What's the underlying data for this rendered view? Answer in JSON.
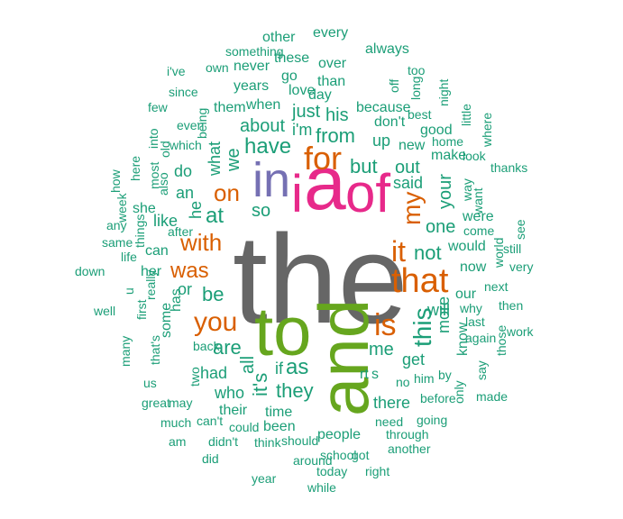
{
  "palette": {
    "teal": "#1b9e77",
    "orange": "#d95f02",
    "purple": "#7570b3",
    "pink": "#e7298a",
    "green": "#66a61e",
    "gray": "#666666"
  },
  "words": [
    {
      "t": "the",
      "c": "gray"
    },
    {
      "t": "to",
      "c": "green"
    },
    {
      "t": "and",
      "c": "green"
    },
    {
      "t": "a",
      "c": "pink"
    },
    {
      "t": "of",
      "c": "pink"
    },
    {
      "t": "i",
      "c": "pink"
    },
    {
      "t": "in",
      "c": "purple"
    },
    {
      "t": "that",
      "c": "orange"
    },
    {
      "t": "for",
      "c": "orange"
    },
    {
      "t": "is",
      "c": "orange"
    },
    {
      "t": "you",
      "c": "orange"
    },
    {
      "t": "it",
      "c": "orange"
    },
    {
      "t": "with",
      "c": "orange"
    },
    {
      "t": "was",
      "c": "orange"
    },
    {
      "t": "my",
      "c": "orange"
    },
    {
      "t": "on",
      "c": "orange"
    },
    {
      "t": "this",
      "c": "teal"
    },
    {
      "t": "have",
      "c": "teal"
    },
    {
      "t": "but",
      "c": "teal"
    },
    {
      "t": "be",
      "c": "teal"
    },
    {
      "t": "at",
      "c": "teal"
    },
    {
      "t": "are",
      "c": "teal"
    },
    {
      "t": "they",
      "c": "teal"
    },
    {
      "t": "me",
      "c": "teal"
    },
    {
      "t": "not",
      "c": "teal"
    },
    {
      "t": "from",
      "c": "teal"
    },
    {
      "t": "about",
      "c": "teal"
    },
    {
      "t": "just",
      "c": "teal"
    },
    {
      "t": "his",
      "c": "teal"
    },
    {
      "t": "as",
      "c": "teal"
    },
    {
      "t": "so",
      "c": "teal"
    },
    {
      "t": "one",
      "c": "teal"
    },
    {
      "t": "your",
      "c": "teal"
    },
    {
      "t": "out",
      "c": "teal"
    },
    {
      "t": "we",
      "c": "teal"
    },
    {
      "t": "like",
      "c": "teal"
    },
    {
      "t": "an",
      "c": "teal"
    },
    {
      "t": "he",
      "c": "teal"
    },
    {
      "t": "who",
      "c": "teal"
    },
    {
      "t": "if",
      "c": "teal"
    },
    {
      "t": "it's",
      "c": "teal"
    },
    {
      "t": "more",
      "c": "teal"
    },
    {
      "t": "will",
      "c": "teal"
    },
    {
      "t": "up",
      "c": "teal"
    },
    {
      "t": "said",
      "c": "teal"
    },
    {
      "t": "i'm",
      "c": "teal"
    },
    {
      "t": "there",
      "c": "teal"
    },
    {
      "t": "all",
      "c": "teal"
    },
    {
      "t": "had",
      "c": "teal"
    },
    {
      "t": "what",
      "c": "teal"
    },
    {
      "t": "do",
      "c": "teal"
    },
    {
      "t": "or",
      "c": "teal"
    },
    {
      "t": "get",
      "c": "teal"
    },
    {
      "t": "time",
      "c": "teal"
    },
    {
      "t": "their",
      "c": "teal"
    },
    {
      "t": "people",
      "c": "teal"
    },
    {
      "t": "been",
      "c": "teal"
    },
    {
      "t": "would",
      "c": "teal"
    },
    {
      "t": "now",
      "c": "teal"
    },
    {
      "t": "our",
      "c": "teal"
    },
    {
      "t": "can",
      "c": "teal"
    },
    {
      "t": "her",
      "c": "teal"
    },
    {
      "t": "has",
      "c": "teal"
    },
    {
      "t": "some",
      "c": "teal"
    },
    {
      "t": "when",
      "c": "teal"
    },
    {
      "t": "them",
      "c": "teal"
    },
    {
      "t": "than",
      "c": "teal"
    },
    {
      "t": "because",
      "c": "teal"
    },
    {
      "t": "don't",
      "c": "teal"
    },
    {
      "t": "new",
      "c": "teal"
    },
    {
      "t": "she",
      "c": "teal"
    },
    {
      "t": "know",
      "c": "teal"
    },
    {
      "t": "were",
      "c": "teal"
    },
    {
      "t": "good",
      "c": "teal"
    },
    {
      "t": "make",
      "c": "teal"
    },
    {
      "t": "day",
      "c": "teal"
    },
    {
      "t": "love",
      "c": "teal"
    },
    {
      "t": "go",
      "c": "teal"
    },
    {
      "t": "over",
      "c": "teal"
    },
    {
      "t": "these",
      "c": "teal"
    },
    {
      "t": "never",
      "c": "teal"
    },
    {
      "t": "years",
      "c": "teal"
    },
    {
      "t": "other",
      "c": "teal"
    },
    {
      "t": "every",
      "c": "teal"
    },
    {
      "t": "always",
      "c": "teal"
    },
    {
      "t": "something",
      "c": "teal"
    },
    {
      "t": "own",
      "c": "teal"
    },
    {
      "t": "i've",
      "c": "teal"
    },
    {
      "t": "since",
      "c": "teal"
    },
    {
      "t": "few",
      "c": "teal"
    },
    {
      "t": "being",
      "c": "teal"
    },
    {
      "t": "even",
      "c": "teal"
    },
    {
      "t": "which",
      "c": "teal"
    },
    {
      "t": "into",
      "c": "teal"
    },
    {
      "t": "old",
      "c": "teal"
    },
    {
      "t": "here",
      "c": "teal"
    },
    {
      "t": "most",
      "c": "teal"
    },
    {
      "t": "also",
      "c": "teal"
    },
    {
      "t": "how",
      "c": "teal"
    },
    {
      "t": "week",
      "c": "teal"
    },
    {
      "t": "any",
      "c": "teal"
    },
    {
      "t": "same",
      "c": "teal"
    },
    {
      "t": "life",
      "c": "teal"
    },
    {
      "t": "down",
      "c": "teal"
    },
    {
      "t": "things",
      "c": "teal"
    },
    {
      "t": "after",
      "c": "teal"
    },
    {
      "t": "u",
      "c": "teal"
    },
    {
      "t": "really",
      "c": "teal"
    },
    {
      "t": "first",
      "c": "teal"
    },
    {
      "t": "well",
      "c": "teal"
    },
    {
      "t": "many",
      "c": "teal"
    },
    {
      "t": "that's",
      "c": "teal"
    },
    {
      "t": "two",
      "c": "teal"
    },
    {
      "t": "back",
      "c": "teal"
    },
    {
      "t": "us",
      "c": "teal"
    },
    {
      "t": "great",
      "c": "teal"
    },
    {
      "t": "may",
      "c": "teal"
    },
    {
      "t": "much",
      "c": "teal"
    },
    {
      "t": "can't",
      "c": "teal"
    },
    {
      "t": "am",
      "c": "teal"
    },
    {
      "t": "didn't",
      "c": "teal"
    },
    {
      "t": "could",
      "c": "teal"
    },
    {
      "t": "think",
      "c": "teal"
    },
    {
      "t": "did",
      "c": "teal"
    },
    {
      "t": "should",
      "c": "teal"
    },
    {
      "t": "year",
      "c": "teal"
    },
    {
      "t": "around",
      "c": "teal"
    },
    {
      "t": "today",
      "c": "teal"
    },
    {
      "t": "while",
      "c": "teal"
    },
    {
      "t": "school",
      "c": "teal"
    },
    {
      "t": "got",
      "c": "teal"
    },
    {
      "t": "right",
      "c": "teal"
    },
    {
      "t": "another",
      "c": "teal"
    },
    {
      "t": "through",
      "c": "teal"
    },
    {
      "t": "need",
      "c": "teal"
    },
    {
      "t": "going",
      "c": "teal"
    },
    {
      "t": "before",
      "c": "teal"
    },
    {
      "t": "him",
      "c": "teal"
    },
    {
      "t": "no",
      "c": "teal"
    },
    {
      "t": "s",
      "c": "teal"
    },
    {
      "t": "rt",
      "c": "teal"
    },
    {
      "t": "by",
      "c": "teal"
    },
    {
      "t": "only",
      "c": "teal"
    },
    {
      "t": "say",
      "c": "teal"
    },
    {
      "t": "those",
      "c": "teal"
    },
    {
      "t": "made",
      "c": "teal"
    },
    {
      "t": "again",
      "c": "teal"
    },
    {
      "t": "last",
      "c": "teal"
    },
    {
      "t": "work",
      "c": "teal"
    },
    {
      "t": "why",
      "c": "teal"
    },
    {
      "t": "then",
      "c": "teal"
    },
    {
      "t": "next",
      "c": "teal"
    },
    {
      "t": "very",
      "c": "teal"
    },
    {
      "t": "world",
      "c": "teal"
    },
    {
      "t": "still",
      "c": "teal"
    },
    {
      "t": "come",
      "c": "teal"
    },
    {
      "t": "want",
      "c": "teal"
    },
    {
      "t": "way",
      "c": "teal"
    },
    {
      "t": "see",
      "c": "teal"
    },
    {
      "t": "thanks",
      "c": "teal"
    },
    {
      "t": "look",
      "c": "teal"
    },
    {
      "t": "where",
      "c": "teal"
    },
    {
      "t": "home",
      "c": "teal"
    },
    {
      "t": "little",
      "c": "teal"
    },
    {
      "t": "night",
      "c": "teal"
    },
    {
      "t": "best",
      "c": "teal"
    },
    {
      "t": "too",
      "c": "teal"
    },
    {
      "t": "long",
      "c": "teal"
    },
    {
      "t": "off",
      "c": "teal"
    },
    {
      "t": "take",
      "c": "teal"
    }
  ]
}
